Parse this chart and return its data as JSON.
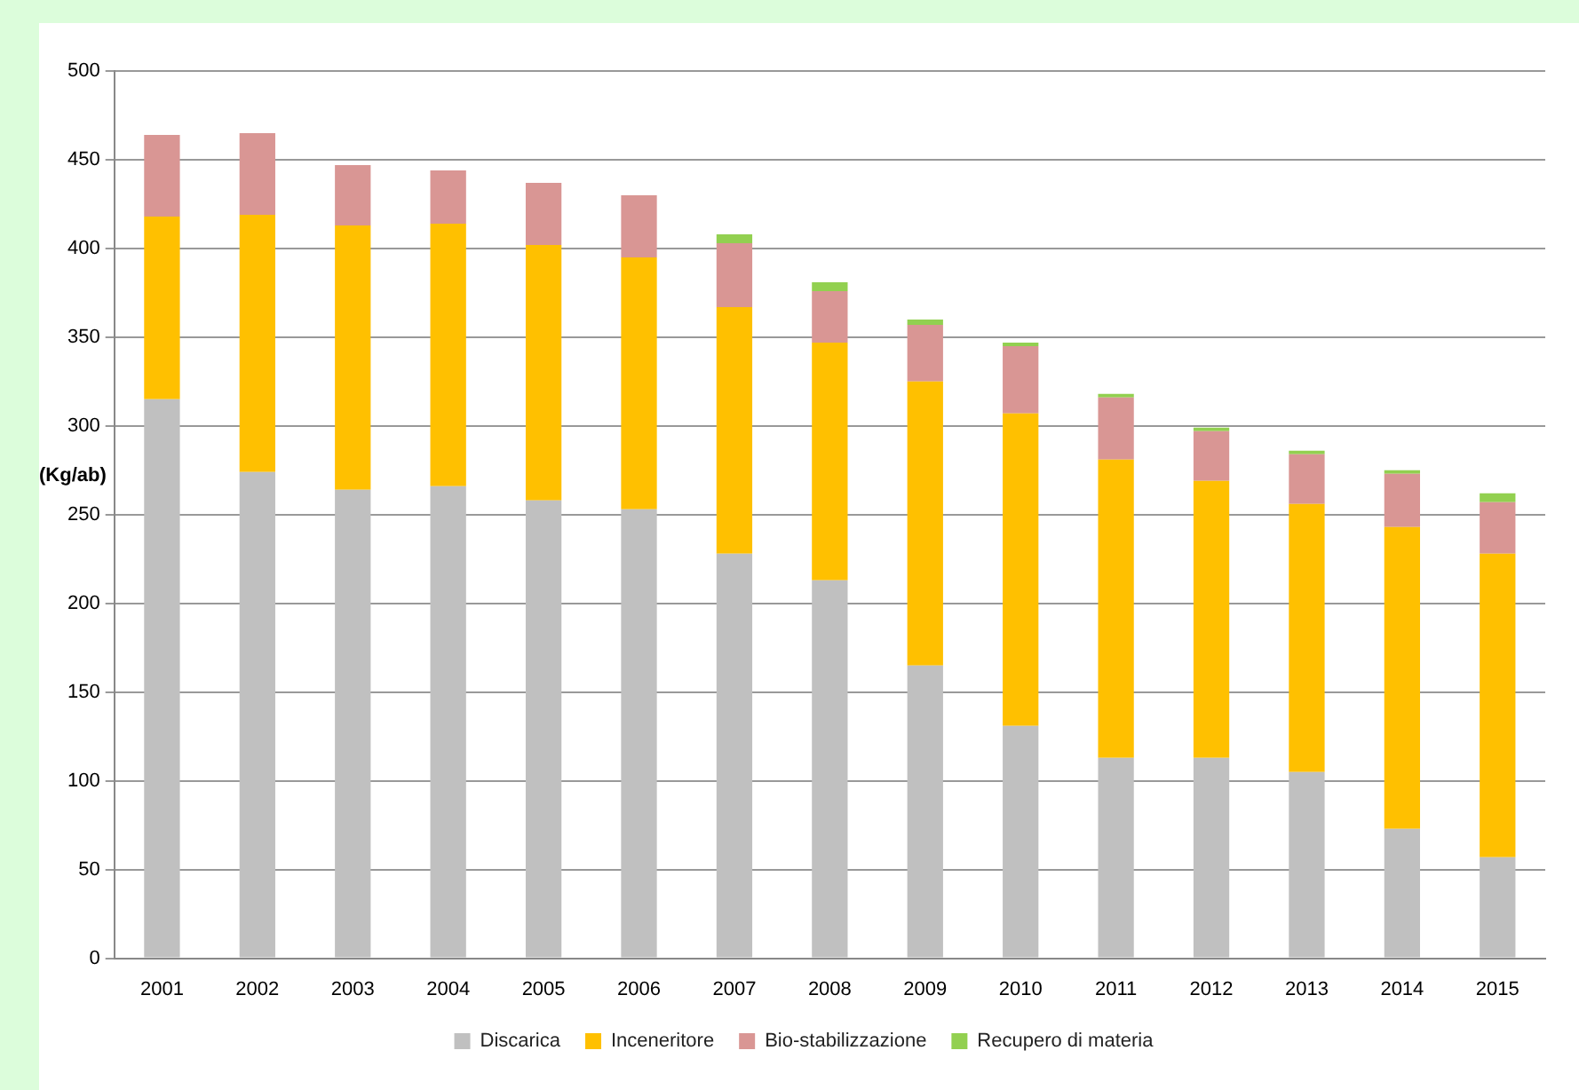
{
  "chart_data": {
    "type": "bar",
    "stacked": true,
    "ylabel": "(Kg/ab)",
    "categories": [
      "2001",
      "2002",
      "2003",
      "2004",
      "2005",
      "2006",
      "2007",
      "2008",
      "2009",
      "2010",
      "2011",
      "2012",
      "2013",
      "2014",
      "2015"
    ],
    "series": [
      {
        "name": "Discarica",
        "color": "#c0c0c0",
        "values": [
          315,
          274,
          264,
          266,
          258,
          253,
          228,
          213,
          165,
          131,
          113,
          113,
          105,
          73,
          57
        ]
      },
      {
        "name": "Inceneritore",
        "color": "#ffc000",
        "values": [
          103,
          145,
          149,
          148,
          144,
          142,
          139,
          134,
          160,
          176,
          168,
          156,
          151,
          170,
          171
        ]
      },
      {
        "name": "Bio-stabilizzazione",
        "color": "#d99694",
        "values": [
          46,
          46,
          34,
          30,
          35,
          35,
          36,
          29,
          32,
          38,
          35,
          28,
          28,
          30,
          29
        ]
      },
      {
        "name": "Recupero di materia",
        "color": "#92d050",
        "values": [
          null,
          null,
          null,
          null,
          null,
          null,
          5,
          5,
          3,
          2,
          2,
          2,
          2,
          2,
          5
        ]
      }
    ],
    "ylim": [
      0,
      500
    ],
    "yticks": [
      0,
      50,
      100,
      150,
      200,
      250,
      300,
      350,
      400,
      450,
      500
    ],
    "grid": "y",
    "legend": "bottom"
  }
}
